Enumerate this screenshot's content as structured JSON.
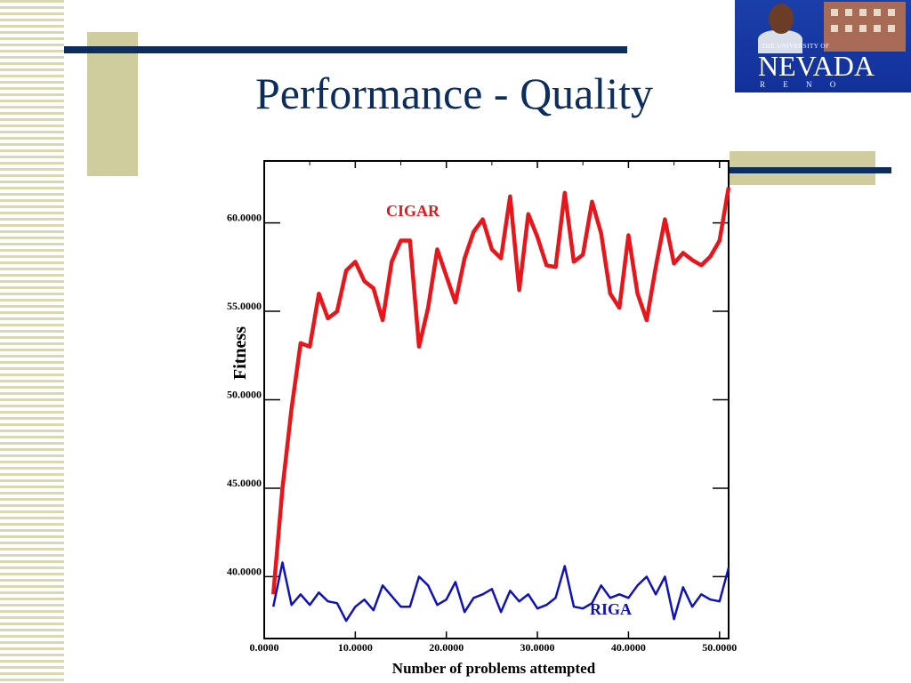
{
  "slide": {
    "title": "Performance - Quality"
  },
  "logo": {
    "line1": "THE UNIVERSITY OF",
    "line2": "NEVADA",
    "line3": "R E N O"
  },
  "colors": {
    "title": "#0d2e5c",
    "accent": "#cfcd9e",
    "cigar": "#e8161b",
    "riga": "#1111bb"
  },
  "chart_data": {
    "type": "line",
    "title": "",
    "xlabel": "Number of problems attempted",
    "ylabel": "Fitness",
    "xlim": [
      0,
      51
    ],
    "ylim": [
      36.5,
      63.5
    ],
    "x_ticks": [
      "0.0000",
      "10.0000",
      "20.0000",
      "30.0000",
      "40.0000",
      "50.0000"
    ],
    "y_ticks": [
      "40.0000",
      "45.0000",
      "50.0000",
      "55.0000",
      "60.0000"
    ],
    "series": [
      {
        "name": "CIGAR",
        "x": [
          1,
          2,
          3,
          4,
          5,
          6,
          7,
          8,
          9,
          10,
          11,
          12,
          13,
          14,
          15,
          16,
          17,
          18,
          19,
          20,
          21,
          22,
          23,
          24,
          25,
          26,
          27,
          28,
          29,
          30,
          31,
          32,
          33,
          34,
          35,
          36,
          37,
          38,
          39,
          40,
          41,
          42,
          43,
          44,
          45,
          46,
          47,
          48,
          49,
          50,
          51
        ],
        "values": [
          39.0,
          45.0,
          49.5,
          53.2,
          53.0,
          56.0,
          54.6,
          55.0,
          57.3,
          57.8,
          56.7,
          56.3,
          54.5,
          57.8,
          59.0,
          59.0,
          53.0,
          55.2,
          58.5,
          57.0,
          55.5,
          58.0,
          59.5,
          60.2,
          58.5,
          58.0,
          61.5,
          56.2,
          60.5,
          59.2,
          57.6,
          57.5,
          61.7,
          57.8,
          58.2,
          61.2,
          59.4,
          56.0,
          55.2,
          59.3,
          56.0,
          54.5,
          57.5,
          60.2,
          57.7,
          58.3,
          57.9,
          57.6,
          58.1,
          59.0,
          62.0
        ]
      },
      {
        "name": "RIGA",
        "x": [
          1,
          2,
          3,
          4,
          5,
          6,
          7,
          8,
          9,
          10,
          11,
          12,
          13,
          14,
          15,
          16,
          17,
          18,
          19,
          20,
          21,
          22,
          23,
          24,
          25,
          26,
          27,
          28,
          29,
          30,
          31,
          32,
          33,
          34,
          35,
          36,
          37,
          38,
          39,
          40,
          41,
          42,
          43,
          44,
          45,
          46,
          47,
          48,
          49,
          50,
          51
        ],
        "values": [
          38.3,
          40.8,
          38.4,
          39.0,
          38.4,
          39.1,
          38.6,
          38.5,
          37.5,
          38.3,
          38.7,
          38.1,
          39.5,
          38.9,
          38.3,
          38.3,
          40.0,
          39.5,
          38.4,
          38.7,
          39.7,
          38.0,
          38.8,
          39.0,
          39.3,
          38.0,
          39.2,
          38.6,
          39.0,
          38.2,
          38.4,
          38.8,
          40.6,
          38.3,
          38.2,
          38.5,
          39.5,
          38.8,
          39.0,
          38.8,
          39.5,
          40.0,
          39.0,
          40.0,
          37.6,
          39.4,
          38.3,
          39.0,
          38.7,
          38.6,
          40.5
        ]
      }
    ],
    "annotations": [
      "CIGAR",
      "RIGA"
    ]
  }
}
